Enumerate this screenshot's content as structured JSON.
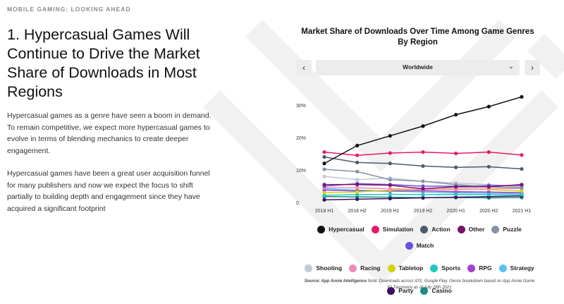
{
  "eyebrow": "MOBILE GAMING: LOOKING AHEAD",
  "headline": "1. Hypercasual Games Will Continue to Drive the Market Share of Downloads in Most Regions",
  "paragraphs": [
    "Hypercasual games as a genre have seen a boom in demand. To remain competitive, we expect more hypercasual games to evolve in terms of blending mechanics to create deeper engagement.",
    "Hypercasual games have been a great user acquisition funnel for many publishers and now we expect the focus to shift partially to building depth and engagement since they have acquired a significant footprint"
  ],
  "region_selector": {
    "value": "Worldwide",
    "prev_icon": "chevron-left-icon",
    "next_icon": "chevron-right-icon",
    "dropdown_icon": "chevron-down-icon"
  },
  "source": {
    "label": "Source: App Annie Intelligence",
    "note": "Note: Downloads across iOS, Google Play. Genre breakdown based on App Annie Game IQ Taxonomy as of July 28th 2021"
  },
  "chart_data": {
    "type": "line",
    "title": "Market Share of Downloads Over Time Among Game Genres By Region",
    "xlabel": "",
    "ylabel": "",
    "x": [
      "2018 H1",
      "2018 H2",
      "2019 H1",
      "2019 H2",
      "2020 H1",
      "2020 H2",
      "2021 H1"
    ],
    "ylim": [
      0,
      33
    ],
    "yticks": [
      0,
      10,
      20,
      30
    ],
    "ytick_labels": [
      "0",
      "10%",
      "20%",
      "30%"
    ],
    "grid": false,
    "legend_position": "bottom",
    "series": [
      {
        "name": "Hypercasual",
        "color": "#111111",
        "values": [
          12,
          17.5,
          20.5,
          23.5,
          27,
          29.5,
          32.5
        ]
      },
      {
        "name": "Simulation",
        "color": "#e8196a",
        "values": [
          15.5,
          14.5,
          15.2,
          15.5,
          15.1,
          15.5,
          14.6
        ]
      },
      {
        "name": "Action",
        "color": "#4a5b72",
        "values": [
          14,
          12.3,
          12,
          11.2,
          10.8,
          11,
          10.3
        ]
      },
      {
        "name": "Other",
        "color": "#7a1468",
        "values": [
          5.5,
          5.5,
          5.3,
          4.2,
          4.8,
          4.8,
          5.5
        ]
      },
      {
        "name": "Puzzle",
        "color": "#8692a4",
        "values": [
          10.2,
          9.5,
          7,
          6.5,
          5.5,
          4.8,
          4.5
        ]
      },
      {
        "name": "Match",
        "color": "#6c50e0",
        "values": [
          5,
          5.8,
          5.5,
          5,
          5,
          5.2,
          5.2
        ]
      },
      {
        "name": "Shooting",
        "color": "#c3c7d6",
        "values": [
          8,
          7,
          7.5,
          6.5,
          6,
          5.5,
          4.7
        ]
      },
      {
        "name": "Racing",
        "color": "#f08bb8",
        "values": [
          4.5,
          4.5,
          4.2,
          4,
          4,
          4.2,
          4.3
        ]
      },
      {
        "name": "Tabletop",
        "color": "#cfd60a",
        "values": [
          3,
          3.2,
          3.8,
          4,
          4.2,
          4,
          3.5
        ]
      },
      {
        "name": "Sports",
        "color": "#20c9c0",
        "values": [
          2.2,
          2.4,
          2.5,
          2.4,
          2.5,
          2.4,
          2.4
        ]
      },
      {
        "name": "RPG",
        "color": "#a640d0",
        "values": [
          3.8,
          3.5,
          3.5,
          3.6,
          3.3,
          3.2,
          3
        ]
      },
      {
        "name": "Strategy",
        "color": "#5bc3f0",
        "values": [
          4.2,
          3.8,
          3.5,
          3.2,
          3,
          2.8,
          2.8
        ]
      },
      {
        "name": "Party",
        "color": "#3a1060",
        "values": [
          0.8,
          1,
          1.2,
          1.4,
          1.6,
          1.8,
          2
        ]
      },
      {
        "name": "Casino",
        "color": "#1c8c84",
        "values": [
          1.8,
          1.7,
          1.6,
          1.5,
          1.5,
          1.4,
          1.5
        ]
      }
    ]
  }
}
